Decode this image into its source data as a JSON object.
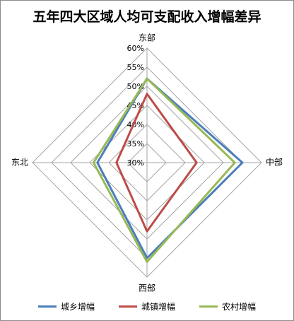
{
  "chart_data": {
    "type": "radar",
    "title": "五年四大区域人均可支配收入增幅差异",
    "axes": [
      "东部",
      "中部",
      "西部",
      "东北"
    ],
    "rlim": [
      0.3,
      0.6
    ],
    "ticks": [
      "30%",
      "35%",
      "40%",
      "45%",
      "50%",
      "55%",
      "60%"
    ],
    "series": [
      {
        "name": "城乡增幅",
        "color": "#4a7ebb",
        "values": [
          0.52,
          0.55,
          0.55,
          0.43
        ]
      },
      {
        "name": "城镇增幅",
        "color": "#be4b48",
        "values": [
          0.48,
          0.43,
          0.48,
          0.38
        ]
      },
      {
        "name": "农村增幅",
        "color": "#98b954",
        "values": [
          0.52,
          0.53,
          0.56,
          0.44
        ]
      }
    ],
    "grid": true,
    "legend_position": "bottom"
  }
}
